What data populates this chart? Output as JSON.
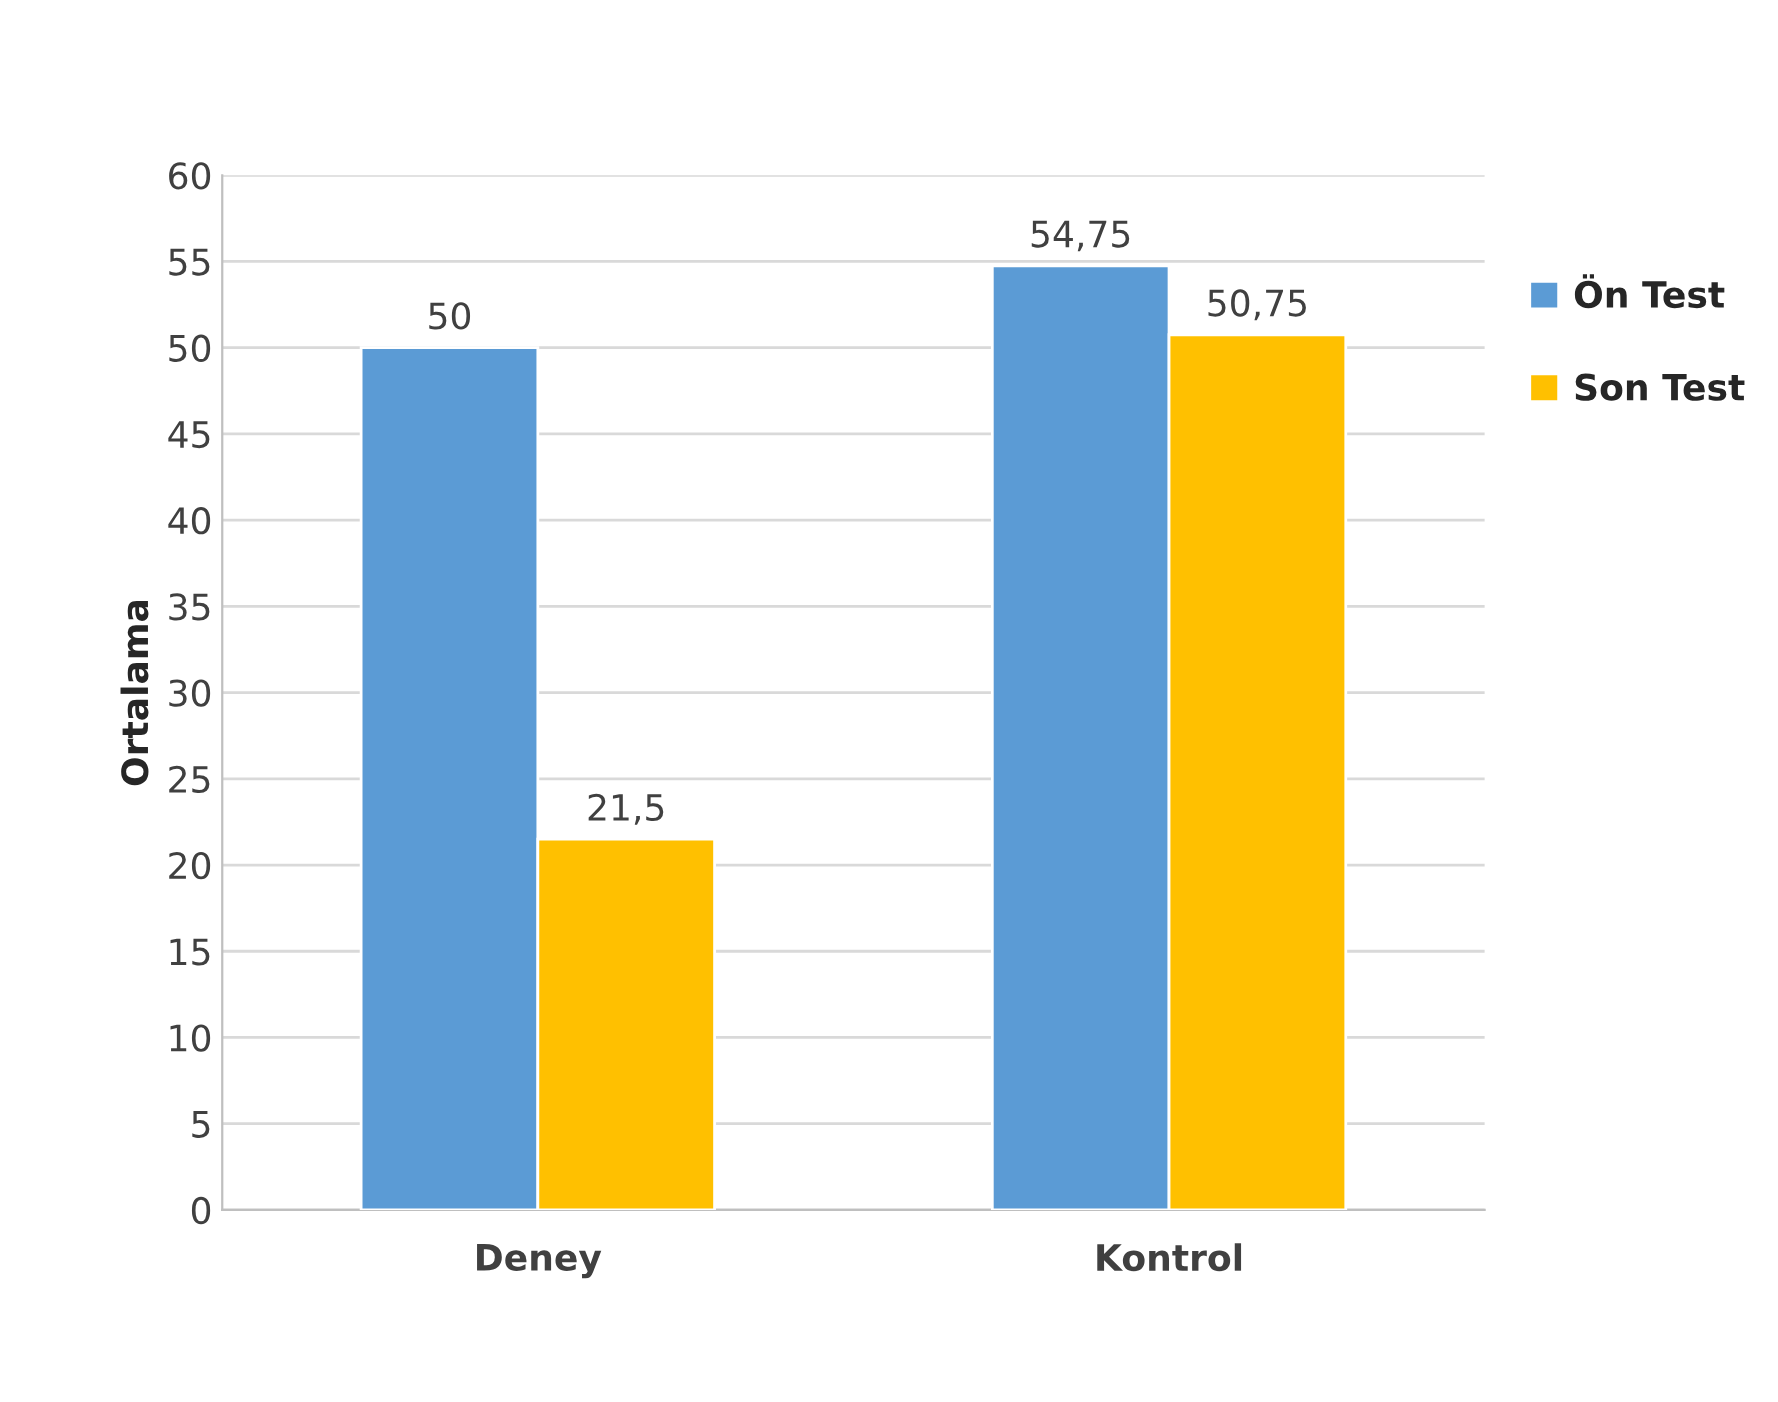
{
  "chart_data": {
    "type": "bar",
    "ylabel": "Ortalama",
    "categories": [
      "Deney",
      "Kontrol"
    ],
    "series": [
      {
        "name": "Ön Test",
        "color": "#5b9bd5",
        "values": [
          50,
          54.75
        ],
        "value_labels": [
          "50",
          "54,75"
        ]
      },
      {
        "name": "Son Test",
        "color": "#ffc000",
        "values": [
          21.5,
          50.75
        ],
        "value_labels": [
          "21,5",
          "50,75"
        ]
      }
    ],
    "ylim": [
      0,
      60
    ],
    "yticks": [
      0,
      5,
      10,
      15,
      20,
      25,
      30,
      35,
      40,
      45,
      50,
      55,
      60
    ],
    "grid": "y",
    "legend": "right"
  }
}
